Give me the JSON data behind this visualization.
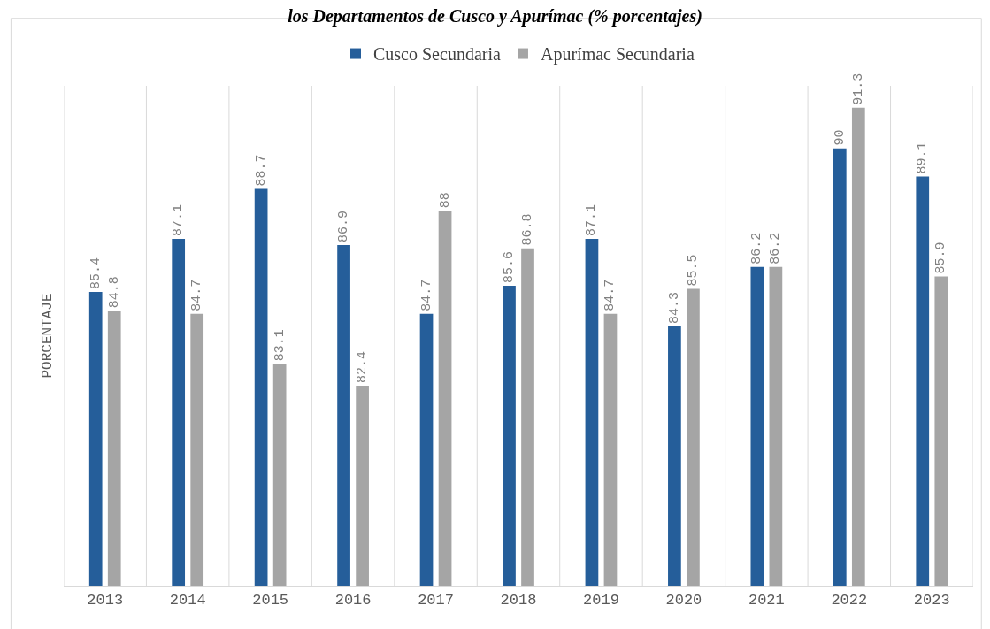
{
  "chart_data": {
    "type": "bar",
    "title": "los Departamentos de Cusco y Apurímac (% porcentajes)",
    "ylabel": "PORCENTAJE",
    "categories": [
      "2013",
      "2014",
      "2015",
      "2016",
      "2017",
      "2018",
      "2019",
      "2020",
      "2021",
      "2022",
      "2023"
    ],
    "series": [
      {
        "name": "Cusco Secundaria",
        "color": "#255e9a",
        "values": [
          85.4,
          87.1,
          88.7,
          86.9,
          84.7,
          85.6,
          87.1,
          84.3,
          86.2,
          90,
          89.1
        ]
      },
      {
        "name": "Apurímac Secundaria",
        "color": "#a5a5a5",
        "values": [
          84.8,
          84.7,
          83.1,
          82.4,
          88,
          86.8,
          84.7,
          85.5,
          86.2,
          91.3,
          85.9
        ]
      }
    ],
    "ylim": [
      76,
      92
    ],
    "data_labels": true,
    "grid": "x",
    "legend": "top"
  }
}
